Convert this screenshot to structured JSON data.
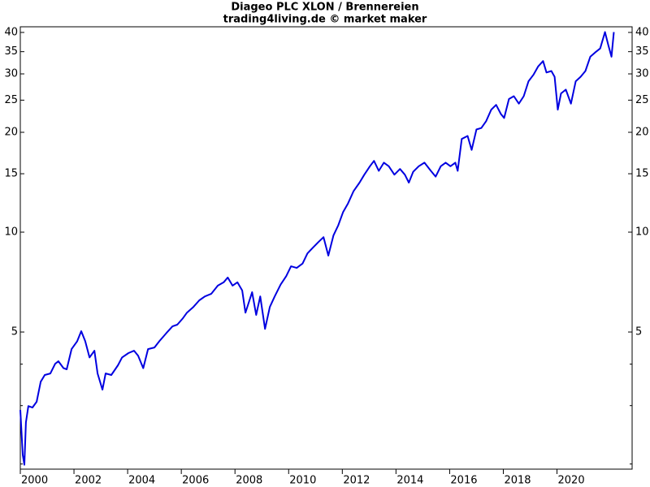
{
  "chart_data": {
    "type": "line",
    "title": "Diageo PLC XLON / Brennereien",
    "subtitle": "trading4living.de © market maker",
    "log_scale": true,
    "xlim": [
      2000,
      2022.8
    ],
    "xticks": [
      2000,
      2002,
      2004,
      2006,
      2008,
      2010,
      2012,
      2014,
      2016,
      2018,
      2020
    ],
    "ylim": [
      1.93,
      41.6
    ],
    "yticks": [
      5,
      10,
      15,
      20,
      25,
      30,
      35,
      40
    ],
    "minor_yticks": [
      2,
      3,
      4
    ],
    "series": [
      {
        "color": "#0000e0",
        "x": [
          2000.0,
          2000.09,
          2000.15,
          2000.21,
          2000.3,
          2000.45,
          2000.61,
          2000.76,
          2000.91,
          2001.12,
          2001.3,
          2001.42,
          2001.61,
          2001.73,
          2001.91,
          2002.12,
          2002.27,
          2002.42,
          2002.58,
          2002.76,
          2002.88,
          2003.06,
          2003.18,
          2003.39,
          2003.64,
          2003.79,
          2004.03,
          2004.24,
          2004.39,
          2004.58,
          2004.76,
          2005.0,
          2005.18,
          2005.45,
          2005.67,
          2005.85,
          2006.06,
          2006.21,
          2006.45,
          2006.67,
          2006.88,
          2007.12,
          2007.36,
          2007.58,
          2007.73,
          2007.91,
          2008.09,
          2008.27,
          2008.39,
          2008.52,
          2008.64,
          2008.79,
          2008.94,
          2009.12,
          2009.3,
          2009.48,
          2009.7,
          2009.91,
          2010.09,
          2010.3,
          2010.52,
          2010.7,
          2010.91,
          2011.12,
          2011.3,
          2011.48,
          2011.67,
          2011.85,
          2012.03,
          2012.21,
          2012.42,
          2012.64,
          2012.82,
          2013.03,
          2013.18,
          2013.36,
          2013.55,
          2013.73,
          2013.94,
          2014.15,
          2014.33,
          2014.48,
          2014.64,
          2014.85,
          2015.06,
          2015.3,
          2015.48,
          2015.67,
          2015.85,
          2016.03,
          2016.21,
          2016.3,
          2016.45,
          2016.67,
          2016.82,
          2017.0,
          2017.18,
          2017.36,
          2017.55,
          2017.73,
          2017.91,
          2018.03,
          2018.21,
          2018.39,
          2018.58,
          2018.76,
          2018.94,
          2019.12,
          2019.3,
          2019.48,
          2019.61,
          2019.79,
          2019.91,
          2020.03,
          2020.15,
          2020.33,
          2020.52,
          2020.7,
          2020.88,
          2021.06,
          2021.24,
          2021.42,
          2021.61,
          2021.79,
          2021.91,
          2022.03,
          2022.12
        ],
        "values": [
          2.91,
          2.13,
          1.99,
          2.67,
          2.99,
          2.96,
          3.08,
          3.54,
          3.71,
          3.75,
          4.01,
          4.08,
          3.89,
          3.86,
          4.44,
          4.69,
          5.03,
          4.69,
          4.19,
          4.39,
          3.75,
          3.35,
          3.75,
          3.71,
          3.97,
          4.19,
          4.32,
          4.39,
          4.24,
          3.89,
          4.44,
          4.49,
          4.69,
          4.97,
          5.2,
          5.26,
          5.5,
          5.72,
          5.95,
          6.23,
          6.4,
          6.52,
          6.9,
          7.06,
          7.3,
          6.9,
          7.06,
          6.67,
          5.72,
          6.16,
          6.59,
          5.63,
          6.4,
          5.11,
          5.95,
          6.4,
          6.95,
          7.37,
          7.89,
          7.8,
          8.04,
          8.63,
          8.99,
          9.36,
          9.66,
          8.5,
          9.77,
          10.5,
          11.5,
          12.2,
          13.3,
          14.1,
          14.9,
          15.8,
          16.4,
          15.3,
          16.2,
          15.8,
          14.9,
          15.5,
          14.9,
          14.1,
          15.2,
          15.8,
          16.2,
          15.3,
          14.7,
          15.8,
          16.2,
          15.8,
          16.2,
          15.3,
          19.1,
          19.5,
          17.7,
          20.4,
          20.6,
          21.6,
          23.4,
          24.2,
          22.7,
          22.1,
          25.2,
          25.7,
          24.4,
          25.7,
          28.5,
          29.8,
          31.6,
          32.8,
          30.3,
          30.6,
          29.4,
          23.4,
          26.2,
          26.9,
          24.4,
          28.5,
          29.4,
          30.6,
          33.8,
          34.8,
          35.8,
          40.1,
          36.7,
          33.8,
          40.1
        ]
      }
    ]
  }
}
